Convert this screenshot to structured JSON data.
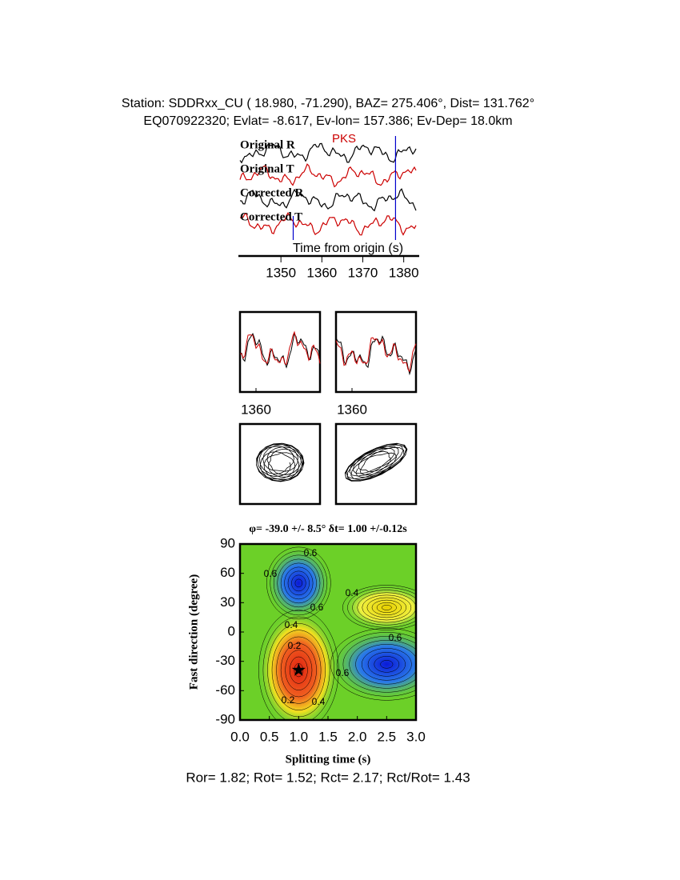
{
  "header": {
    "station": "Station: SDDRxx_CU (  18.980,  -71.290), BAZ=  275.406°, Dist=  131.762°",
    "event": "EQ070922320; Evlat=  -8.617, Ev-lon= 157.386; Ev-Dep= 18.0km"
  },
  "chart_data": [
    {
      "type": "waveform",
      "series": [
        {
          "name": "Original R",
          "color": "#000000"
        },
        {
          "name": "Original T",
          "color": "#cc0000"
        },
        {
          "name": "Corrected R",
          "color": "#000000"
        },
        {
          "name": "Corrected T",
          "color": "#cc0000"
        }
      ],
      "phase": "PKS",
      "phase_color": "#cc0000",
      "window": [
        1353,
        1378
      ],
      "window_color": "#0000cc",
      "xlabel": "Time from origin (s)",
      "xlim": [
        1340,
        1383
      ],
      "xticks": [
        1350,
        1360,
        1370,
        1380
      ]
    },
    {
      "type": "waveform-overlay",
      "series": [
        {
          "color": "#000000"
        },
        {
          "color": "#cc0000"
        }
      ],
      "xlim": [
        1356,
        1376
      ],
      "xticks": [
        1360
      ]
    },
    {
      "type": "contour",
      "title": "φ= -39.0 +/- 8.5° δt= 1.00 +/-0.12s",
      "xlabel": "Splitting time (s)",
      "ylabel": "Fast direction (degree)",
      "xlim": [
        0,
        3
      ],
      "ylim": [
        -90,
        90
      ],
      "xticks": [
        {
          "value": 0,
          "label": "0.0"
        },
        0.5,
        {
          "value": 1,
          "label": "1.0"
        },
        1.5,
        {
          "value": 2,
          "label": "2.0"
        },
        2.5,
        {
          "value": 3,
          "label": "3.0"
        }
      ],
      "yticks": [
        -90,
        -60,
        -30,
        0,
        30,
        60,
        90
      ],
      "levels": [
        0.2,
        0.4,
        0.6
      ],
      "best": {
        "x": 1.0,
        "y": -39.0
      }
    }
  ],
  "footer": "Ror= 1.82; Rot= 1.52; Rct= 2.17; Rct/Rot= 1.43"
}
